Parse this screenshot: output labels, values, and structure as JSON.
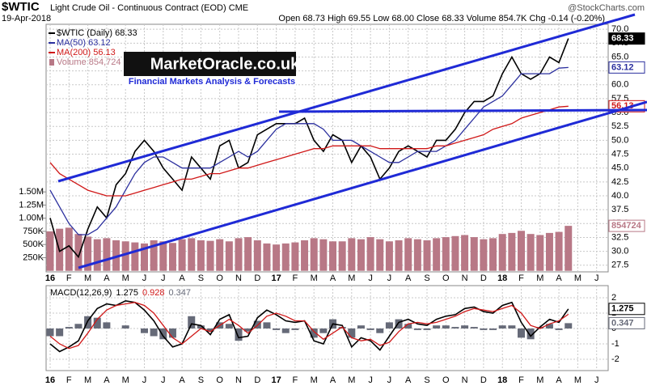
{
  "chart_data": [
    {
      "type": "line",
      "title": "$WTIC",
      "subtitle": "Light Crude Oil - Continuous Contract (EOD) CME",
      "date": "19-Apr-2018",
      "quote": "Open 68.73 High 69.55 Low 68.00 Close 68.33 Volume 854.7K Chg -0.14 (-0.20%)",
      "source": "@StockCharts.com",
      "watermark": {
        "title": "MarketOracle.co.uk",
        "subtitle": "Financial Markets Analysis & Forecasts"
      },
      "categories": [
        "16",
        null,
        "F",
        null,
        "M",
        null,
        "A",
        null,
        "M",
        null,
        "J",
        null,
        "J",
        null,
        "A",
        null,
        "S",
        null,
        "O",
        null,
        "N",
        null,
        "D",
        null,
        "17",
        null,
        "F",
        null,
        "M",
        null,
        "A",
        null,
        "M",
        null,
        "J",
        null,
        "J",
        null,
        "A",
        null,
        "S",
        null,
        "O",
        null,
        "N",
        null,
        "D",
        null,
        "18",
        null,
        "F",
        null,
        "M",
        null,
        "A",
        null,
        "M",
        null,
        "J",
        null
      ],
      "series": [
        {
          "name": "$WTIC (Daily) 68.33",
          "color": "#000000",
          "end_label": "68.33",
          "values": [
            36,
            30,
            31,
            29,
            34,
            38,
            36,
            42,
            44,
            48,
            50,
            48,
            45,
            43,
            41,
            47,
            45,
            43,
            49,
            50,
            45,
            46,
            51,
            52,
            53,
            53,
            53,
            54,
            50,
            48,
            51,
            50,
            46,
            49,
            47,
            43,
            45,
            48,
            49,
            48,
            47,
            50,
            50,
            52,
            55,
            57,
            57,
            58,
            62,
            65,
            62,
            61,
            62,
            65,
            64,
            68.33,
            null,
            null,
            null,
            null
          ]
        },
        {
          "name": "MA(50) 63.12",
          "color": "#2b2f9e",
          "end_label": "63.12",
          "values": [
            41,
            38,
            35,
            33,
            33,
            34,
            36,
            38,
            41,
            44,
            46,
            47,
            47,
            46,
            45,
            45,
            45,
            45,
            46,
            47,
            48,
            47,
            48,
            50,
            52,
            53,
            53,
            53,
            53,
            52,
            50,
            50,
            50,
            49,
            48,
            47,
            46,
            46,
            47,
            48,
            48,
            48,
            49,
            50,
            52,
            54,
            56,
            57,
            58,
            60,
            62,
            62,
            62,
            62,
            63,
            63.12,
            null,
            null,
            null,
            null
          ]
        },
        {
          "name": "MA(200) 56.13",
          "color": "#d01818",
          "end_label": "56.13",
          "values": [
            46,
            44,
            43,
            42,
            41,
            40.5,
            40,
            40,
            40,
            40.5,
            41,
            41.5,
            42,
            42.5,
            43,
            43,
            43.5,
            44,
            44,
            44.5,
            45,
            45,
            45.5,
            46,
            46.5,
            47,
            47.5,
            48,
            48.5,
            48.5,
            49,
            49,
            49,
            49,
            49,
            48.5,
            48.5,
            48.5,
            48.5,
            48.5,
            48.5,
            49,
            49,
            49.5,
            50,
            50.5,
            51,
            52,
            52.5,
            53,
            54,
            54.5,
            55,
            55.5,
            56,
            56.13,
            null,
            null,
            null,
            null
          ]
        },
        {
          "name": "Volume 854,724",
          "color": "#b87886",
          "type": "bar",
          "axis": "y2",
          "end_label": "854724",
          "values": [
            750000,
            800000,
            820000,
            700000,
            650000,
            600000,
            620000,
            580000,
            560000,
            540000,
            520000,
            580000,
            560000,
            530000,
            600000,
            620000,
            580000,
            570000,
            600000,
            560000,
            620000,
            640000,
            580000,
            520000,
            500000,
            520000,
            540000,
            580000,
            620000,
            600000,
            560000,
            560000,
            620000,
            600000,
            640000,
            600000,
            560000,
            580000,
            620000,
            600000,
            580000,
            620000,
            640000,
            660000,
            680000,
            640000,
            600000,
            620000,
            700000,
            720000,
            760000,
            700000,
            680000,
            720000,
            740000,
            854724,
            null,
            null,
            null,
            null
          ]
        }
      ],
      "ylim": [
        26.3,
        70.9
      ],
      "yticks": [
        27.5,
        {
          "value": 30,
          "label": "30.0"
        },
        32.5,
        {
          "value": 35,
          "label": "35.0"
        },
        37.5,
        {
          "value": 40,
          "label": "40.0"
        },
        42.5,
        {
          "value": 45,
          "label": "45.0"
        },
        47.5,
        {
          "value": 50,
          "label": "50.0"
        },
        52.5,
        {
          "value": 55,
          "label": "55.0"
        },
        57.5,
        {
          "value": 60,
          "label": "60.0"
        },
        62.5,
        {
          "value": 65,
          "label": "65.0"
        },
        67.5,
        {
          "value": 70,
          "label": "70.0"
        }
      ],
      "y2lim": [
        -20000,
        4686000
      ],
      "y2ticks": [
        {
          "value": 250000,
          "label": "250K"
        },
        {
          "value": 500000,
          "label": "500K"
        },
        {
          "value": 750000,
          "label": "750K"
        },
        {
          "value": 1000000,
          "label": "1.00M"
        },
        {
          "value": 1250000,
          "label": "1.25M"
        },
        {
          "value": 1500000,
          "label": "1.50M"
        }
      ],
      "grid": true
    },
    {
      "type": "line",
      "legend_title": "MACD(12,26,9)",
      "categories": [
        "16",
        null,
        "F",
        null,
        "M",
        null,
        "A",
        null,
        "M",
        null,
        "J",
        null,
        "J",
        null,
        "A",
        null,
        "S",
        null,
        "O",
        null,
        "N",
        null,
        "D",
        null,
        "17",
        null,
        "F",
        null,
        "M",
        null,
        "A",
        null,
        "M",
        null,
        "J",
        null,
        "J",
        null,
        "A",
        null,
        "S",
        null,
        "O",
        null,
        "N",
        null,
        "D",
        null,
        "18",
        null,
        "F",
        null,
        "M",
        null,
        "A",
        null,
        "M",
        null,
        "J",
        null
      ],
      "series": [
        {
          "name": "1.275",
          "color": "#000000",
          "end_label": "1.275",
          "values": [
            -1.0,
            -1.5,
            -1.2,
            -0.8,
            0.5,
            1.3,
            1.6,
            1.5,
            1.8,
            1.7,
            1.2,
            0.5,
            -0.5,
            -1.2,
            -1.0,
            0.3,
            0.2,
            -0.4,
            0.6,
            0.9,
            -0.6,
            -0.5,
            0.7,
            1.2,
            0.9,
            0.5,
            0.4,
            0.5,
            -0.8,
            -1.0,
            0.3,
            0.2,
            -1.2,
            -0.6,
            -0.8,
            -1.4,
            -0.5,
            0.4,
            0.6,
            0.3,
            0.2,
            0.6,
            0.8,
            0.9,
            1.3,
            1.4,
            1.1,
            1.0,
            1.5,
            1.7,
            0.4,
            -0.5,
            0.1,
            0.6,
            0.4,
            1.275,
            null,
            null,
            null,
            null
          ]
        },
        {
          "name": "0.928",
          "color": "#d01818",
          "values": [
            -0.5,
            -1.0,
            -1.3,
            -1.1,
            -0.3,
            0.6,
            1.2,
            1.5,
            1.6,
            1.7,
            1.5,
            1.0,
            0.2,
            -0.6,
            -1.0,
            -0.5,
            0.0,
            -0.2,
            0.2,
            0.6,
            0.2,
            -0.3,
            0.2,
            0.8,
            1.0,
            0.8,
            0.5,
            0.5,
            -0.2,
            -0.7,
            -0.3,
            0.1,
            -0.6,
            -0.8,
            -0.7,
            -1.1,
            -0.9,
            -0.2,
            0.3,
            0.4,
            0.3,
            0.4,
            0.6,
            0.8,
            1.1,
            1.3,
            1.2,
            1.1,
            1.3,
            1.5,
            1.0,
            0.2,
            0.0,
            0.3,
            0.5,
            0.928,
            null,
            null,
            null,
            null
          ]
        },
        {
          "name": "0.347",
          "color": "#666a78",
          "type": "bar",
          "end_label": "0.347",
          "values": [
            -0.5,
            -0.5,
            0.1,
            0.3,
            0.8,
            0.7,
            0.4,
            0,
            0.2,
            0,
            -0.3,
            -0.5,
            -0.7,
            -0.6,
            0,
            0.8,
            0.2,
            -0.2,
            0.4,
            0.3,
            -0.8,
            -0.2,
            0.5,
            0.4,
            -0.1,
            -0.3,
            -0.1,
            0,
            -0.6,
            -0.3,
            0.6,
            0.1,
            -0.6,
            0.2,
            -0.1,
            -0.3,
            0.4,
            0.6,
            0.3,
            -0.1,
            -0.1,
            0.2,
            0.2,
            0.1,
            0.2,
            0.1,
            -0.1,
            -0.1,
            0.2,
            0.2,
            -0.6,
            -0.7,
            0.1,
            0.3,
            -0.1,
            0.347,
            null,
            null,
            null,
            null
          ]
        }
      ],
      "ylim": [
        -2.74,
        2.79
      ],
      "yticks": [
        -2,
        -1,
        0,
        1,
        2
      ],
      "grid": true
    }
  ]
}
